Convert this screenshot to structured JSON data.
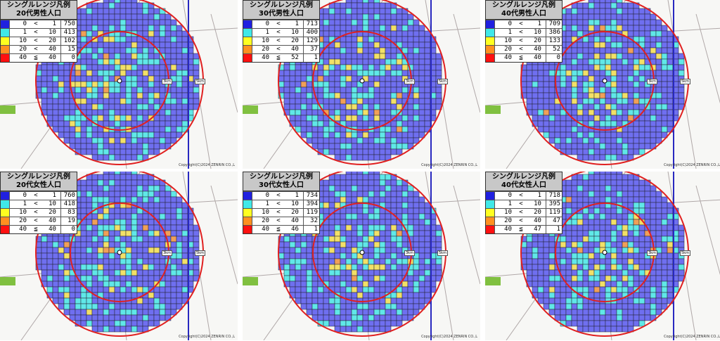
{
  "legend_title": "シングルレンジ凡例",
  "colors": {
    "0-1": "#2020e0",
    "1-10": "#40e8e8",
    "10-20": "#ffff20",
    "20-40": "#ff9020",
    "40+": "#ff1010",
    "map_blue": "#6f6ff0",
    "map_cyan": "#60e8e8",
    "map_yellow": "#f2e068",
    "map_orange": "#f0a058",
    "ring": "#e02020"
  },
  "ring_labels": {
    "inner": "3km",
    "outer": "5km"
  },
  "copyright": "Copyright(C)2024 ZENRIN CO.,L",
  "panels": [
    {
      "subtitle": "20代男性人口",
      "rows": [
        [
          "0",
          "<",
          "1",
          "750"
        ],
        [
          "1",
          "<",
          "10",
          "413"
        ],
        [
          "10",
          "<",
          "20",
          "102"
        ],
        [
          "20",
          "<",
          "40",
          "15"
        ],
        [
          "40",
          "≦",
          "40",
          "0"
        ]
      ]
    },
    {
      "subtitle": "30代男性人口",
      "rows": [
        [
          "0",
          "<",
          "1",
          "713"
        ],
        [
          "1",
          "<",
          "10",
          "400"
        ],
        [
          "10",
          "<",
          "20",
          "129"
        ],
        [
          "20",
          "<",
          "40",
          "37"
        ],
        [
          "40",
          "≦",
          "52",
          "1"
        ]
      ]
    },
    {
      "subtitle": "40代男性人口",
      "rows": [
        [
          "0",
          "<",
          "1",
          "709"
        ],
        [
          "1",
          "<",
          "10",
          "386"
        ],
        [
          "10",
          "<",
          "20",
          "133"
        ],
        [
          "20",
          "<",
          "40",
          "52"
        ],
        [
          "40",
          "≦",
          "40",
          "0"
        ]
      ]
    },
    {
      "subtitle": "20代女性人口",
      "rows": [
        [
          "0",
          "<",
          "1",
          "760"
        ],
        [
          "1",
          "<",
          "10",
          "418"
        ],
        [
          "10",
          "<",
          "20",
          "83"
        ],
        [
          "20",
          "<",
          "40",
          "19"
        ],
        [
          "40",
          "≦",
          "40",
          "0"
        ]
      ]
    },
    {
      "subtitle": "30代女性人口",
      "rows": [
        [
          "0",
          "<",
          "1",
          "734"
        ],
        [
          "1",
          "<",
          "10",
          "394"
        ],
        [
          "10",
          "<",
          "20",
          "119"
        ],
        [
          "20",
          "<",
          "40",
          "32"
        ],
        [
          "40",
          "≦",
          "46",
          "1"
        ]
      ]
    },
    {
      "subtitle": "40代女性人口",
      "rows": [
        [
          "0",
          "<",
          "1",
          "718"
        ],
        [
          "1",
          "<",
          "10",
          "395"
        ],
        [
          "10",
          "<",
          "20",
          "119"
        ],
        [
          "20",
          "<",
          "40",
          "47"
        ],
        [
          "40",
          "≦",
          "47",
          "1"
        ]
      ]
    }
  ]
}
